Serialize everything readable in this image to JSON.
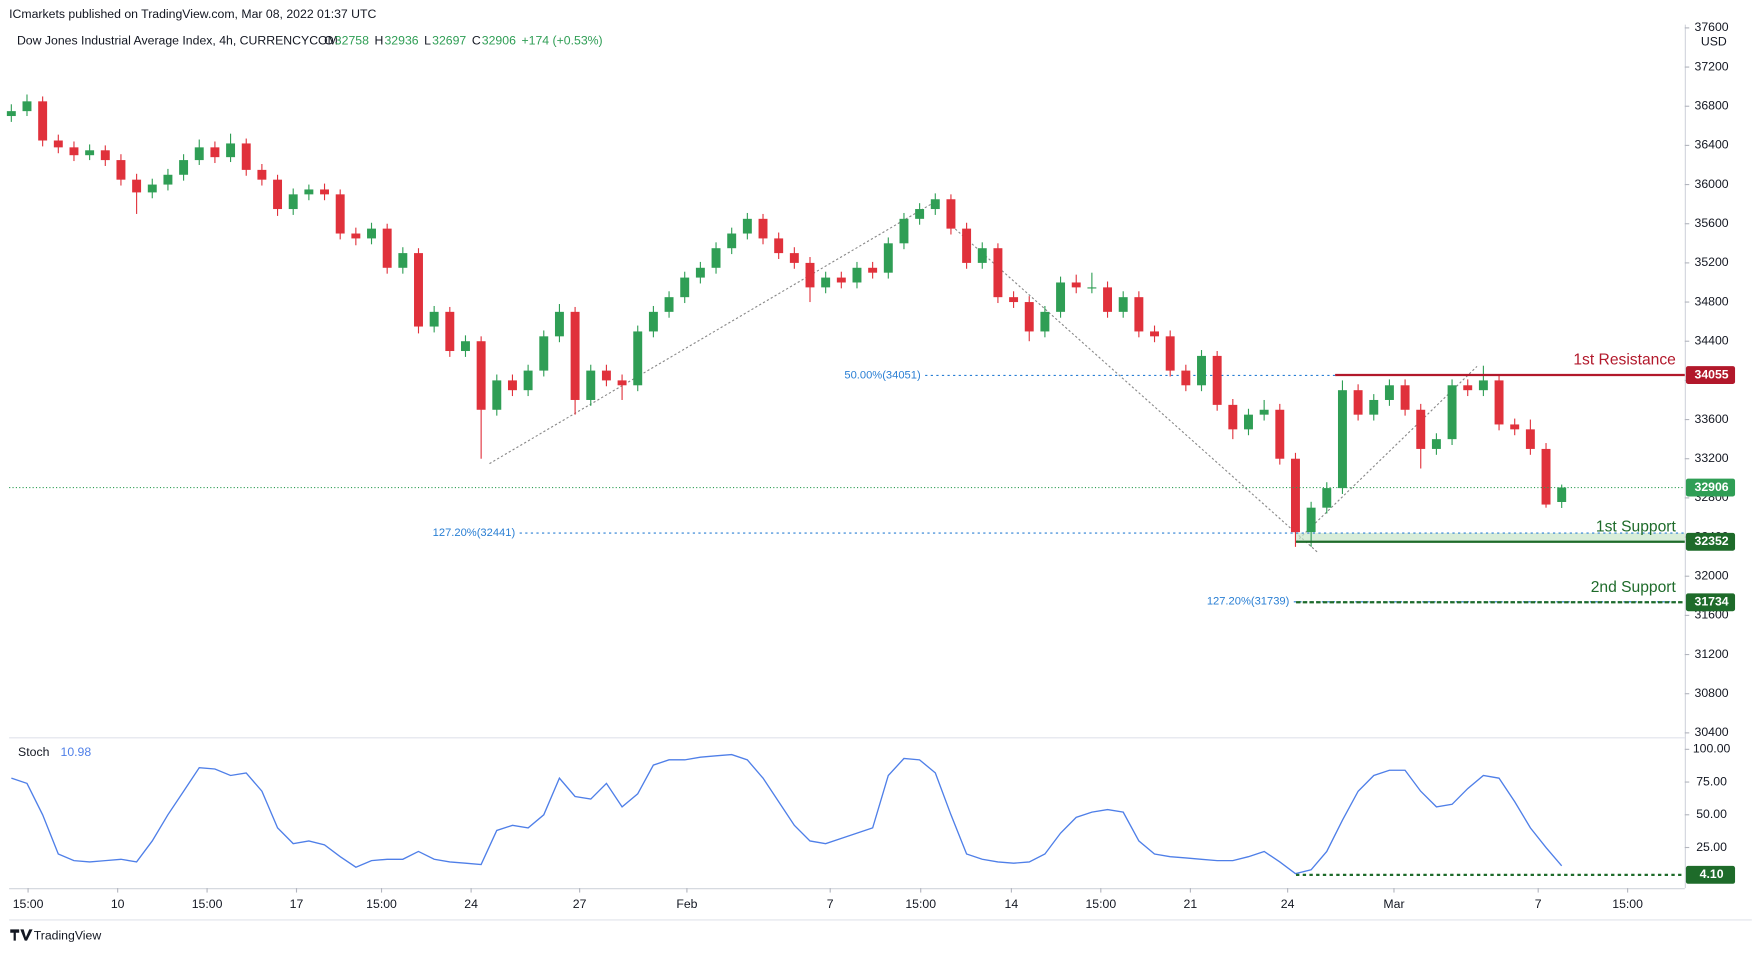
{
  "chart_data": {
    "type": "candlestick",
    "published": "ICmarkets published on TradingView.com, Mar 08, 2022 01:37 UTC",
    "title": "Dow Jones Industrial Average Index, 4h, CURRENCYCOM",
    "ohlc_letters": [
      "O",
      "H",
      "L",
      "C"
    ],
    "change": "+174 (+0.53%)",
    "currency": "USD",
    "brand": "TradingView",
    "up_color": "#2f9e55",
    "down_color": "#e0313b",
    "ohlc": [
      [
        36700,
        36820,
        36640,
        36750
      ],
      [
        36750,
        36920,
        36700,
        36850
      ],
      [
        36850,
        36900,
        36390,
        36450
      ],
      [
        36450,
        36510,
        36320,
        36380
      ],
      [
        36380,
        36440,
        36240,
        36300
      ],
      [
        36300,
        36410,
        36250,
        36350
      ],
      [
        36350,
        36400,
        36190,
        36250
      ],
      [
        36250,
        36310,
        35990,
        36050
      ],
      [
        36050,
        36110,
        35700,
        35920
      ],
      [
        35920,
        36060,
        35860,
        36000
      ],
      [
        36000,
        36160,
        35940,
        36100
      ],
      [
        36100,
        36310,
        36040,
        36250
      ],
      [
        36250,
        36460,
        36200,
        36380
      ],
      [
        36380,
        36440,
        36220,
        36280
      ],
      [
        36280,
        36520,
        36230,
        36420
      ],
      [
        36420,
        36470,
        36090,
        36150
      ],
      [
        36150,
        36210,
        35990,
        36050
      ],
      [
        36050,
        36100,
        35680,
        35750
      ],
      [
        35750,
        35960,
        35690,
        35900
      ],
      [
        35900,
        36000,
        35840,
        35950
      ],
      [
        35950,
        36010,
        35840,
        35900
      ],
      [
        35900,
        35950,
        35440,
        35500
      ],
      [
        35500,
        35560,
        35380,
        35450
      ],
      [
        35450,
        35610,
        35390,
        35550
      ],
      [
        35550,
        35600,
        35090,
        35150
      ],
      [
        35150,
        35360,
        35090,
        35300
      ],
      [
        35300,
        35350,
        34480,
        34550
      ],
      [
        34550,
        34760,
        34490,
        34700
      ],
      [
        34700,
        34750,
        34240,
        34300
      ],
      [
        34300,
        34460,
        34240,
        34400
      ],
      [
        34400,
        34450,
        33200,
        33700
      ],
      [
        33700,
        34060,
        33640,
        34000
      ],
      [
        34000,
        34060,
        33840,
        33900
      ],
      [
        33900,
        34160,
        33840,
        34100
      ],
      [
        34100,
        34510,
        34040,
        34450
      ],
      [
        34450,
        34780,
        34390,
        34700
      ],
      [
        34700,
        34750,
        33650,
        33800
      ],
      [
        33800,
        34160,
        33740,
        34100
      ],
      [
        34100,
        34160,
        33940,
        34000
      ],
      [
        34000,
        34060,
        33800,
        33950
      ],
      [
        33950,
        34560,
        33890,
        34500
      ],
      [
        34500,
        34760,
        34440,
        34700
      ],
      [
        34700,
        34910,
        34640,
        34850
      ],
      [
        34850,
        35110,
        34790,
        35050
      ],
      [
        35050,
        35210,
        34990,
        35150
      ],
      [
        35150,
        35410,
        35090,
        35350
      ],
      [
        35350,
        35560,
        35290,
        35500
      ],
      [
        35500,
        35710,
        35440,
        35650
      ],
      [
        35650,
        35700,
        35390,
        35450
      ],
      [
        35450,
        35510,
        35240,
        35300
      ],
      [
        35300,
        35360,
        35140,
        35200
      ],
      [
        35200,
        35260,
        34800,
        34950
      ],
      [
        34950,
        35110,
        34890,
        35050
      ],
      [
        35050,
        35110,
        34940,
        35000
      ],
      [
        35000,
        35210,
        34940,
        35150
      ],
      [
        35150,
        35210,
        35040,
        35100
      ],
      [
        35100,
        35460,
        35040,
        35400
      ],
      [
        35400,
        35710,
        35340,
        35650
      ],
      [
        35650,
        35810,
        35590,
        35750
      ],
      [
        35750,
        35910,
        35690,
        35850
      ],
      [
        35850,
        35900,
        35490,
        35550
      ],
      [
        35550,
        35610,
        35140,
        35200
      ],
      [
        35200,
        35410,
        35140,
        35350
      ],
      [
        35350,
        35400,
        34790,
        34850
      ],
      [
        34850,
        34910,
        34740,
        34800
      ],
      [
        34800,
        34860,
        34400,
        34500
      ],
      [
        34500,
        34760,
        34440,
        34700
      ],
      [
        34700,
        35060,
        34640,
        35000
      ],
      [
        35000,
        35080,
        34890,
        34950
      ],
      [
        34950,
        35100,
        34890,
        34950
      ],
      [
        34950,
        35010,
        34640,
        34700
      ],
      [
        34700,
        34910,
        34640,
        34850
      ],
      [
        34850,
        34910,
        34440,
        34500
      ],
      [
        34500,
        34560,
        34390,
        34450
      ],
      [
        34450,
        34510,
        34040,
        34100
      ],
      [
        34100,
        34160,
        33890,
        33950
      ],
      [
        33950,
        34310,
        33890,
        34250
      ],
      [
        34250,
        34300,
        33690,
        33750
      ],
      [
        33750,
        33810,
        33400,
        33500
      ],
      [
        33500,
        33710,
        33440,
        33650
      ],
      [
        33650,
        33800,
        33590,
        33700
      ],
      [
        33700,
        33760,
        33140,
        33200
      ],
      [
        33200,
        33260,
        32300,
        32450
      ],
      [
        32450,
        32760,
        32300,
        32700
      ],
      [
        32700,
        32960,
        32640,
        32900
      ],
      [
        32900,
        34000,
        32840,
        33900
      ],
      [
        33900,
        33960,
        33590,
        33650
      ],
      [
        33650,
        33860,
        33590,
        33800
      ],
      [
        33800,
        34010,
        33740,
        33950
      ],
      [
        33950,
        34010,
        33640,
        33700
      ],
      [
        33700,
        33760,
        33100,
        33300
      ],
      [
        33300,
        33460,
        33240,
        33400
      ],
      [
        33400,
        34010,
        33340,
        33950
      ],
      [
        33950,
        34010,
        33840,
        33900
      ],
      [
        33900,
        34150,
        33840,
        34000
      ],
      [
        34000,
        34060,
        33490,
        33550
      ],
      [
        33550,
        33610,
        33440,
        33500
      ],
      [
        33500,
        33600,
        33240,
        33300
      ],
      [
        33300,
        33360,
        32700,
        32732
      ],
      [
        32758,
        32936,
        32697,
        32906
      ]
    ],
    "xlim": [
      -0.14,
      106.86
    ],
    "xticks": [
      {
        "value": 1.07,
        "label": "15:00"
      },
      {
        "value": 6.79,
        "label": "10"
      },
      {
        "value": 12.5,
        "label": "15:00"
      },
      {
        "value": 18.21,
        "label": "17"
      },
      {
        "value": 23.64,
        "label": "15:00"
      },
      {
        "value": 29.36,
        "label": "24"
      },
      {
        "value": 36.29,
        "label": "27"
      },
      {
        "value": 43.14,
        "label": "Feb"
      },
      {
        "value": 52.29,
        "label": "7"
      },
      {
        "value": 58.07,
        "label": "15:00"
      },
      {
        "value": 63.86,
        "label": "14"
      },
      {
        "value": 69.57,
        "label": "15:00"
      },
      {
        "value": 75.29,
        "label": "21"
      },
      {
        "value": 81.5,
        "label": "24"
      },
      {
        "value": 88.29,
        "label": "Mar"
      },
      {
        "value": 97.5,
        "label": "7"
      },
      {
        "value": 103.21,
        "label": "15:00"
      }
    ],
    "ylim": [
      30355,
      37634
    ],
    "yticks": [
      30400,
      30800,
      31200,
      31600,
      32000,
      32400,
      32800,
      33200,
      33600,
      34000,
      34400,
      34800,
      35200,
      35600,
      36000,
      36400,
      36800,
      37200,
      37600
    ],
    "levels": [
      {
        "name": "1st Resistance",
        "value": 34055,
        "color": "#b2182b"
      },
      {
        "name": "1st Support",
        "value": 32352,
        "color": "#1e6b2a"
      },
      {
        "name": "2nd Support",
        "value": 31734,
        "color": "#1e6b2a"
      }
    ],
    "support_zone": [
      32352,
      32441
    ],
    "fib_levels": [
      {
        "label": "50.00%(34051)",
        "value": 34051
      },
      {
        "label": "127.20%(32441)",
        "value": 32441
      },
      {
        "label": "127.20%(31739)",
        "value": 31739
      }
    ],
    "stoch": {
      "name": "Stoch",
      "last_label": "10.98",
      "color": "#4f7fe8",
      "values": [
        78,
        74,
        50,
        20,
        15,
        14,
        15,
        16,
        14,
        30,
        50,
        68,
        86,
        85,
        80,
        82,
        68,
        40,
        28,
        30,
        27,
        18,
        10,
        15,
        16,
        16,
        22,
        16,
        14,
        13,
        12,
        38,
        42,
        40,
        50,
        78,
        64,
        62,
        74,
        56,
        66,
        88,
        92,
        92,
        94,
        95,
        96,
        92,
        78,
        60,
        42,
        30,
        28,
        32,
        36,
        40,
        80,
        93,
        92,
        82,
        50,
        20,
        16,
        14,
        13,
        14,
        20,
        36,
        48,
        52,
        54,
        52,
        30,
        20,
        18,
        17,
        16,
        15,
        15,
        18,
        22,
        14,
        5,
        8,
        22,
        46,
        68,
        80,
        84,
        84,
        68,
        56,
        58,
        70,
        80,
        78,
        60,
        40,
        25,
        10.98
      ],
      "ylim": [
        -6,
        107.5
      ],
      "yticks": [
        {
          "value": 25,
          "label": "25.00"
        },
        {
          "value": 50,
          "label": "50.00"
        },
        {
          "value": 75,
          "label": "75.00"
        },
        {
          "value": 100,
          "label": "100.00"
        }
      ],
      "level": {
        "value": 4.1,
        "label": "4.10"
      }
    }
  }
}
